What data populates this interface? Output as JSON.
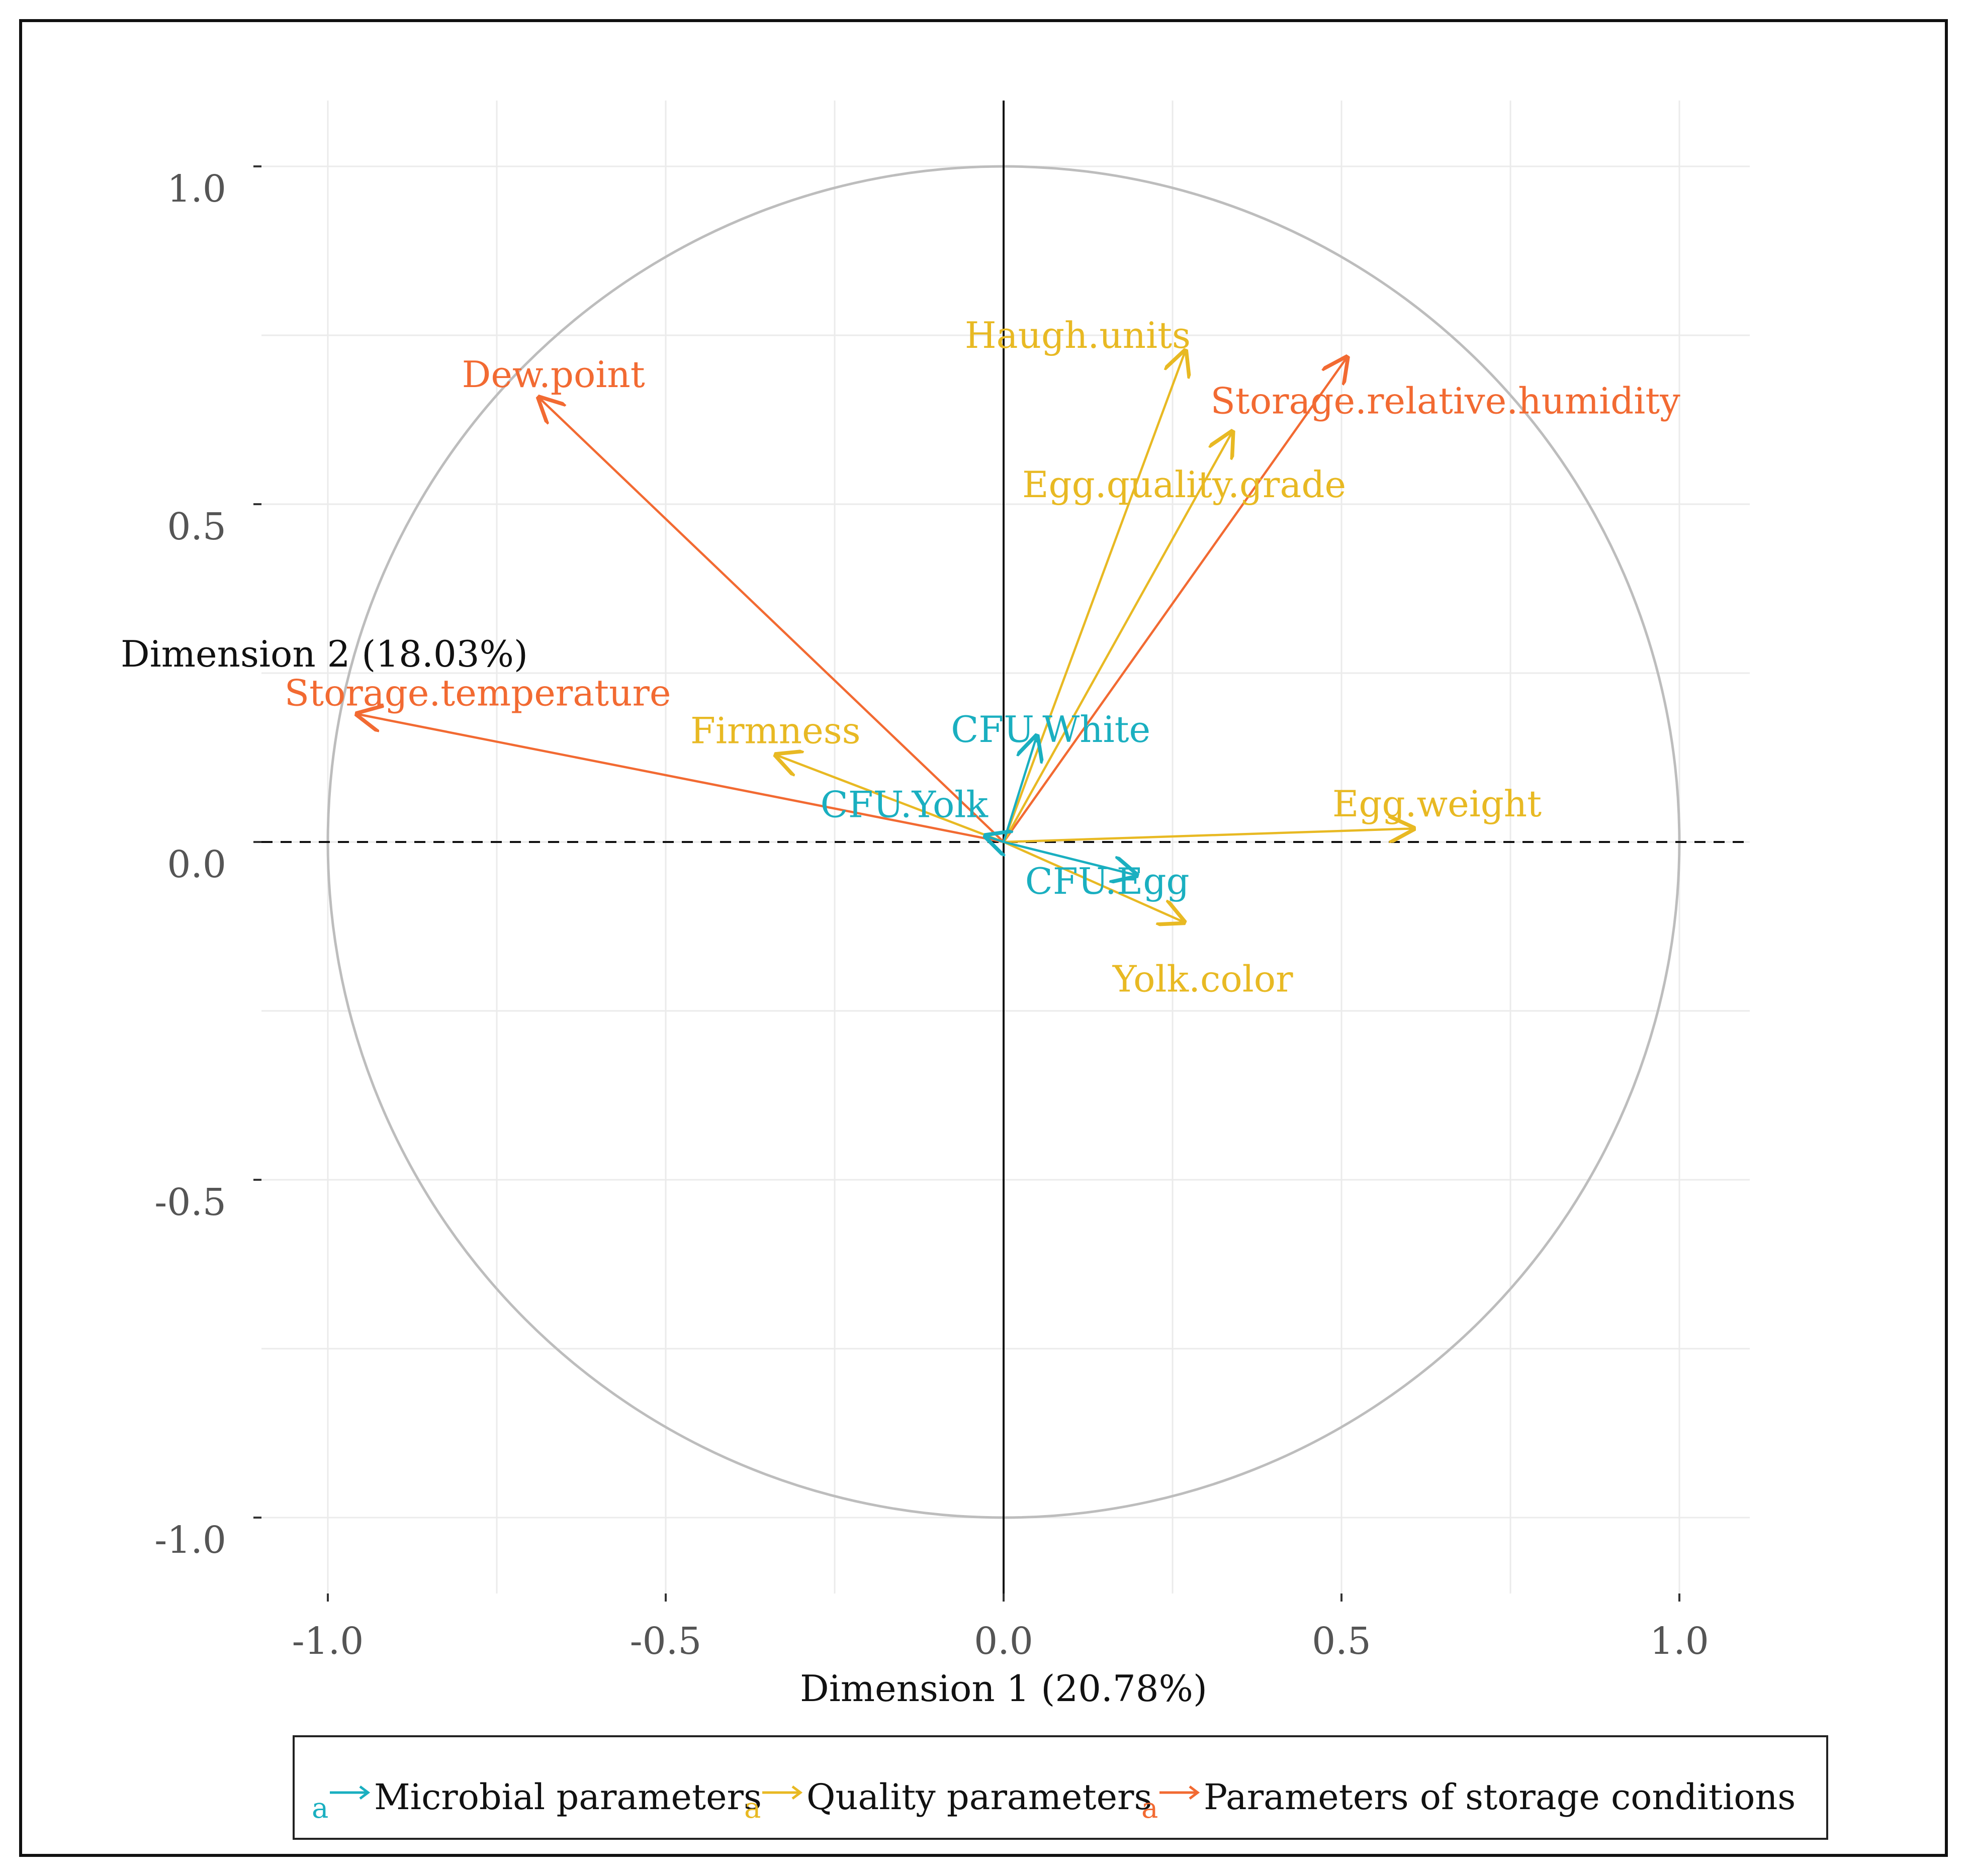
{
  "chart_data": {
    "type": "scatter",
    "subtype": "pca-variable-correlation-circle",
    "xlabel": "Dimension 1 (20.78%)",
    "ylabel": "Dimension 2 (18.03%)",
    "xlim": [
      -1.1,
      1.1
    ],
    "ylim": [
      -1.1,
      1.1
    ],
    "xticks": [
      "-1.0",
      "-0.5",
      "0.0",
      "0.5",
      "1.0"
    ],
    "yticks": [
      "1.0",
      "0.5",
      "0.0",
      "-0.5",
      "-1.0"
    ],
    "grid": true,
    "unit_circle": true,
    "legend_position": "bottom",
    "groups": [
      {
        "name": "Microbial parameters",
        "color": "#1AAFC0"
      },
      {
        "name": "Quality parameters",
        "color": "#E8B923"
      },
      {
        "name": "Parameters of storage conditions",
        "color": "#F26A32"
      }
    ],
    "variables": [
      {
        "name": "Dew.point",
        "group": 2,
        "x": -0.69,
        "y": 0.66
      },
      {
        "name": "Storage.temperature",
        "group": 2,
        "x": -0.96,
        "y": 0.19
      },
      {
        "name": "Storage.relative.humidity",
        "group": 2,
        "x": 0.51,
        "y": 0.72
      },
      {
        "name": "Haugh.units",
        "group": 1,
        "x": 0.27,
        "y": 0.73
      },
      {
        "name": "Egg.quality.grade",
        "group": 1,
        "x": 0.34,
        "y": 0.61
      },
      {
        "name": "Firmness",
        "group": 1,
        "x": -0.34,
        "y": 0.13
      },
      {
        "name": "Egg.weight",
        "group": 1,
        "x": 0.61,
        "y": 0.02
      },
      {
        "name": "Yolk.color",
        "group": 1,
        "x": 0.27,
        "y": -0.12
      },
      {
        "name": "CFU.White",
        "group": 0,
        "x": 0.05,
        "y": 0.16
      },
      {
        "name": "CFU.Yolk",
        "group": 0,
        "x": -0.03,
        "y": 0.01
      },
      {
        "name": "CFU.Egg",
        "group": 0,
        "x": 0.2,
        "y": -0.05
      }
    ]
  },
  "legend": {
    "symbol": "a",
    "items": [
      "Microbial parameters",
      "Quality parameters",
      "Parameters of storage conditions"
    ]
  }
}
